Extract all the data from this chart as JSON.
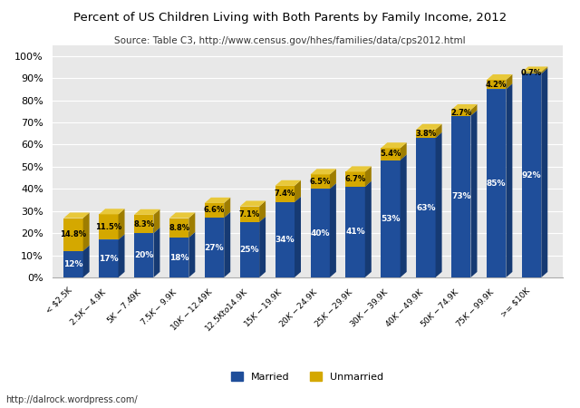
{
  "title": "Percent of US Children Living with Both Parents by Family Income, 2012",
  "subtitle": "Source: Table C3, http://www.census.gov/hhes/families/data/cps2012.html",
  "categories": [
    "< $2.5K",
    "$2.5K - $4.9K",
    "$5K - $7.49K",
    "$7.5K - $9.9K",
    "$10K - $12.49K",
    "$12.5K to $14.9K",
    "$15K - $19.9K",
    "$20K - $24.9K",
    "$25K - $29.9K",
    "$30K - $39.9K",
    "$40K - $49.9K",
    "$50K - $74.9K",
    "$75K - $99.9K",
    ">= $10K"
  ],
  "married": [
    12,
    17,
    20,
    18,
    27,
    25,
    34,
    40,
    41,
    53,
    63,
    73,
    85,
    92
  ],
  "unmarried": [
    14.8,
    11.5,
    8.3,
    8.8,
    6.6,
    7.1,
    7.4,
    6.5,
    6.7,
    5.4,
    3.8,
    2.7,
    4.2,
    0.7
  ],
  "married_color": "#1F4E9A",
  "married_side_color": "#163A73",
  "married_top_color": "#3A6EC0",
  "unmarried_color": "#D4A800",
  "unmarried_side_color": "#9E7D00",
  "unmarried_top_color": "#E8C83A",
  "background_color": "#FFFFFF",
  "plot_bg_color": "#E8E8E8",
  "grid_color": "#FFFFFF",
  "footer": "http://dalrock.wordpress.com/",
  "ylim": [
    0,
    105
  ],
  "yticks": [
    0,
    10,
    20,
    30,
    40,
    50,
    60,
    70,
    80,
    90,
    100
  ],
  "ytick_labels": [
    "0%",
    "10%",
    "20%",
    "30%",
    "40%",
    "50%",
    "60%",
    "70%",
    "80%",
    "90%",
    "100%"
  ],
  "bar_width": 0.55,
  "depth": 0.18
}
